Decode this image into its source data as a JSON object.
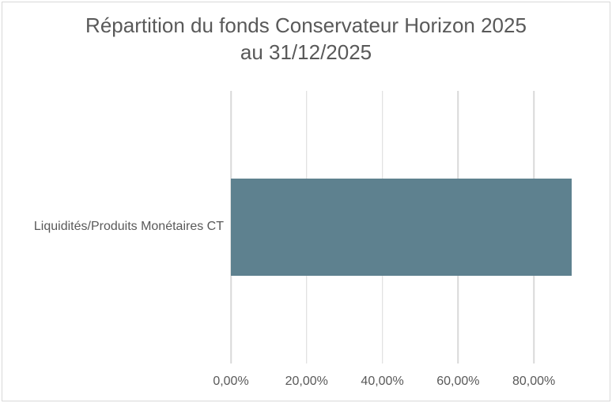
{
  "title": {
    "line1": "Répartition du fonds Conservateur Horizon 2025",
    "line2": "au 31/12/2025"
  },
  "chart_data": {
    "type": "bar",
    "orientation": "horizontal",
    "title": "Répartition du fonds Conservateur Horizon 2025 au 31/12/2025",
    "categories": [
      "Liquidités/Produits Monétaires CT"
    ],
    "values": [
      90
    ],
    "value_format": "0,00%",
    "xlabel": "",
    "ylabel": "",
    "xlim": [
      0,
      90
    ],
    "x_ticks": [
      0,
      20,
      40,
      60,
      80
    ],
    "x_tick_labels": [
      "0,00%",
      "20,00%",
      "40,00%",
      "60,00%",
      "80,00%"
    ],
    "grid": "vertical-major-only",
    "legend": "none"
  },
  "colors": {
    "bar": "#5E818F",
    "text": "#595959",
    "gridline": "#D9D9D9",
    "chart_border": "#D9D9D9",
    "background": "#FFFFFF"
  }
}
